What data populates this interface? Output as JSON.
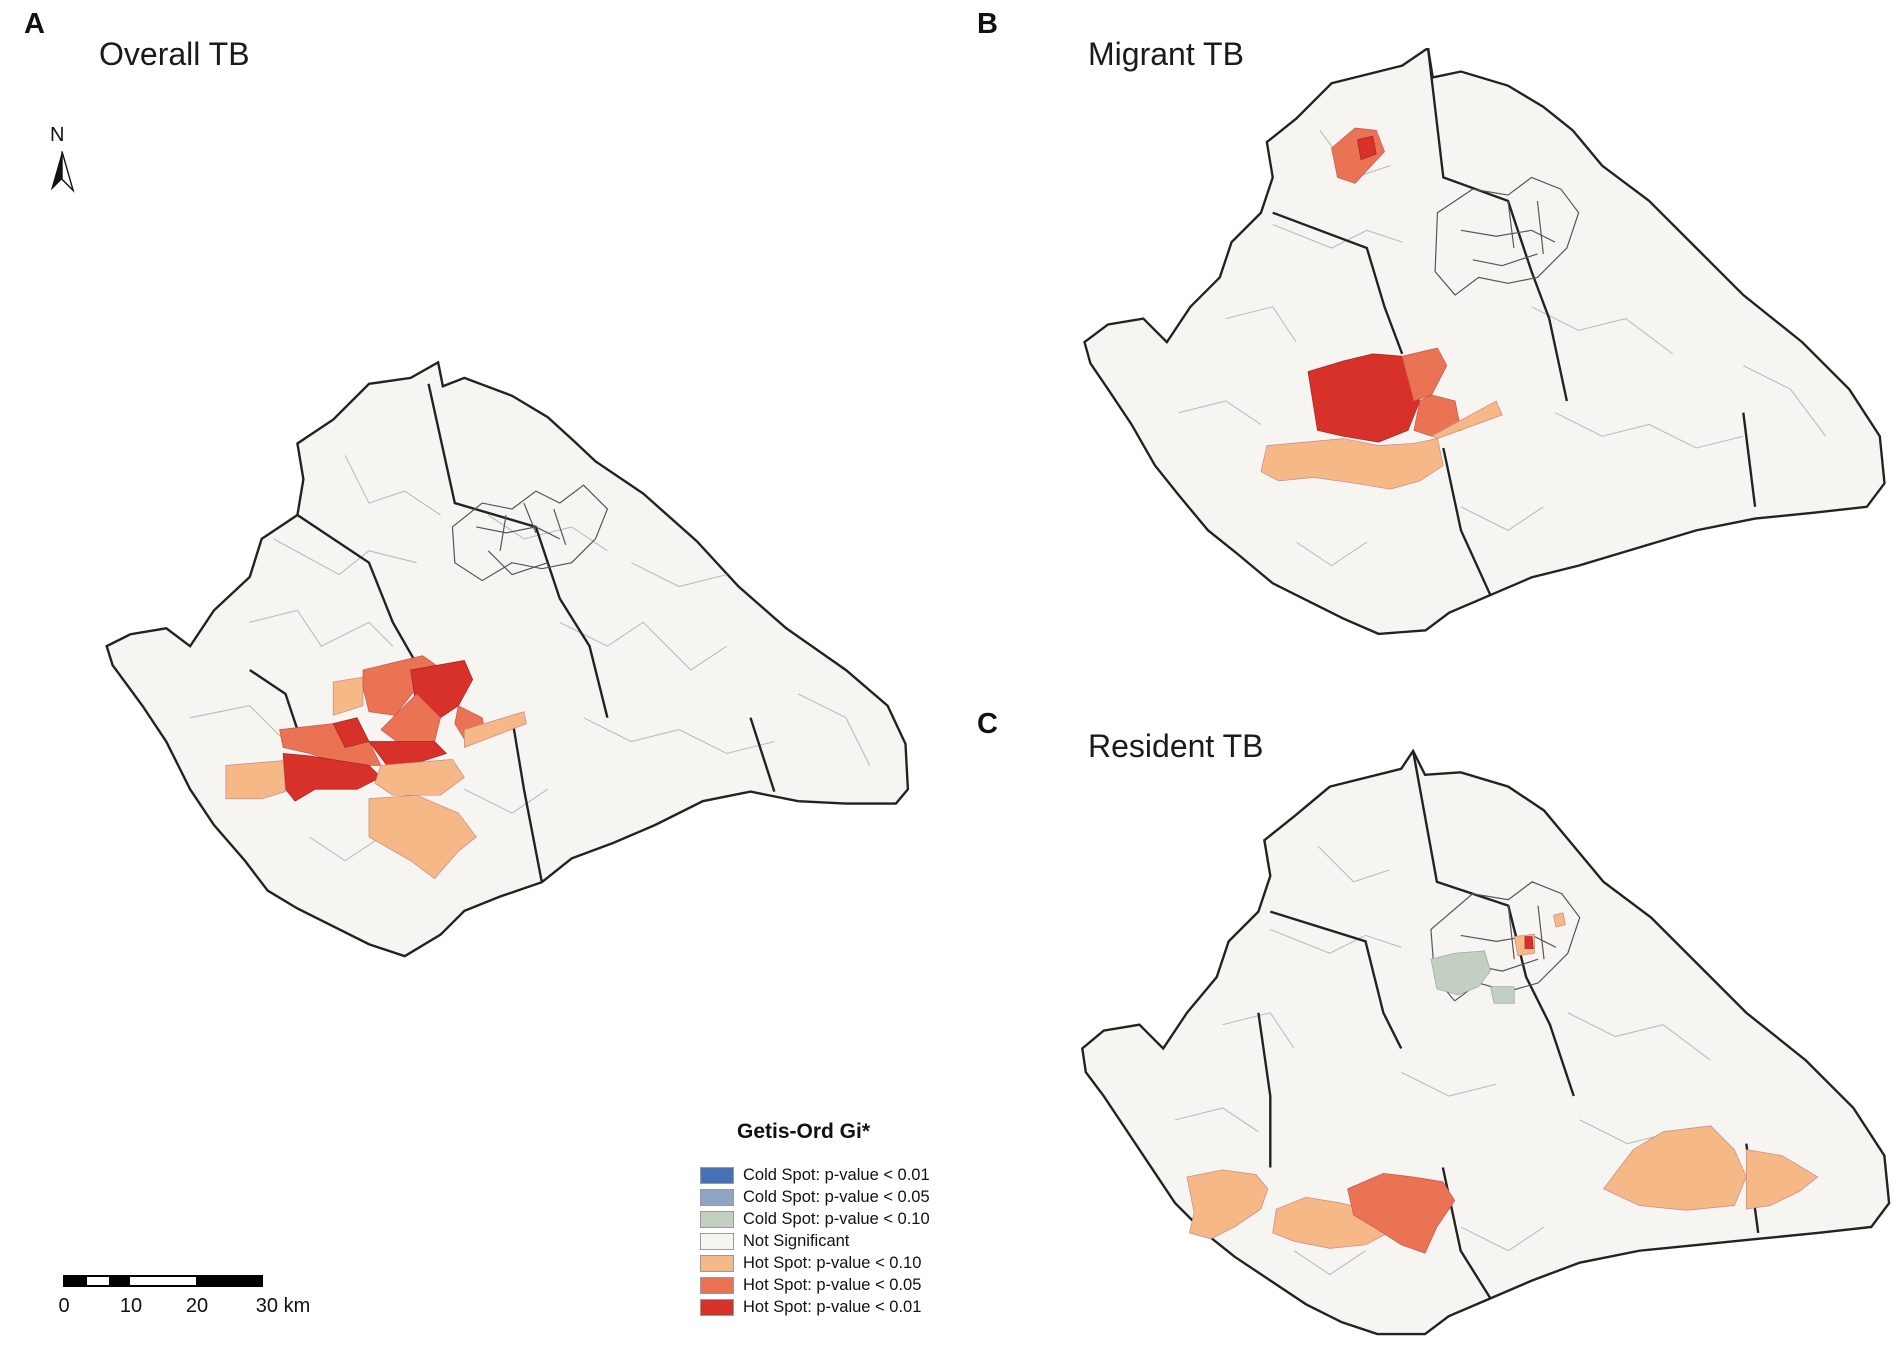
{
  "panels": [
    {
      "letter": "A",
      "title": "Overall TB"
    },
    {
      "letter": "B",
      "title": "Migrant TB"
    },
    {
      "letter": "C",
      "title": "Resident TB"
    }
  ],
  "north_arrow": {
    "label": "N"
  },
  "legend": {
    "title": "Getis-Ord Gi*",
    "items": [
      {
        "label": "Cold Spot: p-value < 0.01",
        "color": "#4472b5"
      },
      {
        "label": "Cold Spot: p-value < 0.05",
        "color": "#8ea5c5"
      },
      {
        "label": "Cold Spot: p-value < 0.10",
        "color": "#c3cfc1"
      },
      {
        "label": "Not Significant",
        "color": "#f6f5f2"
      },
      {
        "label": "Hot Spot: p-value < 0.10",
        "color": "#f5b886"
      },
      {
        "label": "Hot Spot: p-value < 0.05",
        "color": "#ea7354"
      },
      {
        "label": "Hot Spot: p-value < 0.01",
        "color": "#d8312a"
      }
    ]
  },
  "scale_bar": {
    "ticks": [
      "0",
      "10",
      "20",
      "30 km"
    ]
  }
}
